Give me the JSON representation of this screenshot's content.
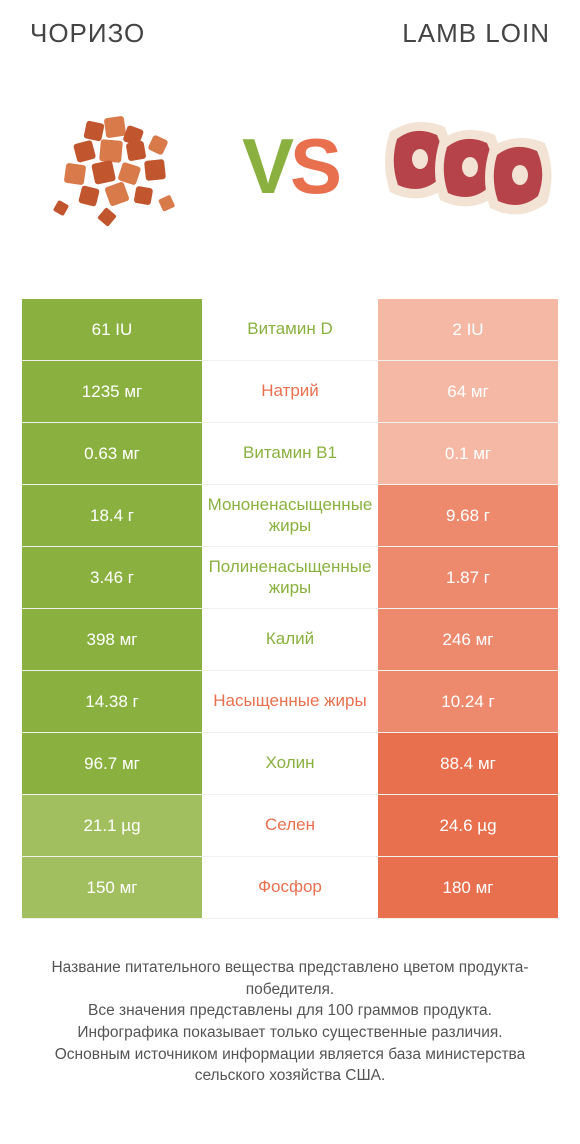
{
  "header": {
    "left_title": "ЧОРИЗО",
    "right_title": "LAMB LOIN"
  },
  "vs": {
    "v": "V",
    "s": "S"
  },
  "colors": {
    "green": "#8ab13f",
    "green_mid": "#a2bf5f",
    "green_light": "#c7d7a2",
    "orange": "#e8704f",
    "orange_mid": "#ed8a6e",
    "orange_light": "#f4b8a5",
    "white": "#ffffff",
    "text": "#555555"
  },
  "rows": [
    {
      "left": "61 IU",
      "left_shade": "green",
      "label": "Витамин D",
      "label_color": "green",
      "right": "2 IU",
      "right_shade": "orange-light"
    },
    {
      "left": "1235 мг",
      "left_shade": "green",
      "label": "Натрий",
      "label_color": "orange",
      "right": "64 мг",
      "right_shade": "orange-light"
    },
    {
      "left": "0.63 мг",
      "left_shade": "green",
      "label": "Витамин B1",
      "label_color": "green",
      "right": "0.1 мг",
      "right_shade": "orange-light"
    },
    {
      "left": "18.4 г",
      "left_shade": "green",
      "label": "Мононенасыщенные жиры",
      "label_color": "green",
      "right": "9.68 г",
      "right_shade": "orange-mid"
    },
    {
      "left": "3.46 г",
      "left_shade": "green",
      "label": "Полиненасыщенные жиры",
      "label_color": "green",
      "right": "1.87 г",
      "right_shade": "orange-mid"
    },
    {
      "left": "398 мг",
      "left_shade": "green",
      "label": "Калий",
      "label_color": "green",
      "right": "246 мг",
      "right_shade": "orange-mid"
    },
    {
      "left": "14.38 г",
      "left_shade": "green",
      "label": "Насыщенные жиры",
      "label_color": "orange",
      "right": "10.24 г",
      "right_shade": "orange-mid"
    },
    {
      "left": "96.7 мг",
      "left_shade": "green",
      "label": "Холин",
      "label_color": "green",
      "right": "88.4 мг",
      "right_shade": "orange"
    },
    {
      "left": "21.1 µg",
      "left_shade": "green-mid",
      "label": "Селен",
      "label_color": "orange",
      "right": "24.6 µg",
      "right_shade": "orange"
    },
    {
      "left": "150 мг",
      "left_shade": "green-mid",
      "label": "Фосфор",
      "label_color": "orange",
      "right": "180 мг",
      "right_shade": "orange"
    }
  ],
  "footer": {
    "line1": "Название питательного вещества представлено цветом продукта-победителя.",
    "line2": "Все значения представлены для 100 граммов продукта.",
    "line3": "Инфографика показывает только существенные различия.",
    "line4": "Основным источником информации является база министерства сельского хозяйства США."
  }
}
